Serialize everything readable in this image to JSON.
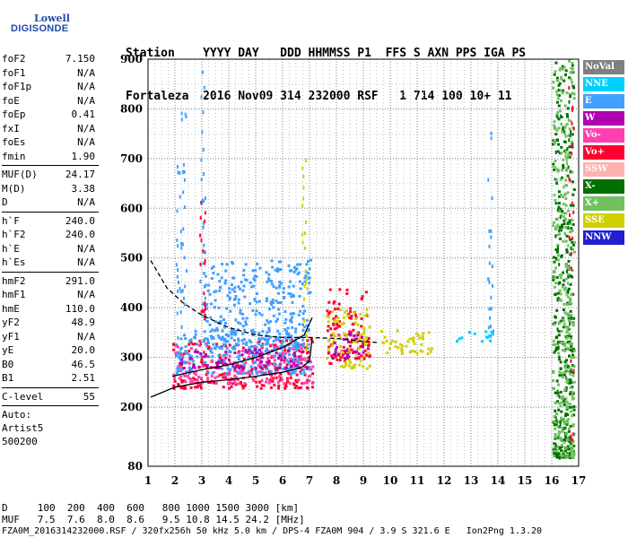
{
  "logo": {
    "line1": "Lowell",
    "line2": "DIGISONDE"
  },
  "header": {
    "line1": "Station    YYYY DAY   DDD HHMMSS P1  FFS S AXN PPS IGA PS",
    "line2": "Fortaleza  2016 Nov09 314 232000 RSF   1 714 100 10+ 11"
  },
  "params": [
    {
      "group": [
        {
          "k": "foF2",
          "v": "7.150"
        },
        {
          "k": "foF1",
          "v": "N/A"
        },
        {
          "k": "foF1p",
          "v": "N/A"
        },
        {
          "k": "foE",
          "v": "N/A"
        },
        {
          "k": "foEp",
          "v": "0.41"
        },
        {
          "k": "fxI",
          "v": "N/A"
        },
        {
          "k": "foEs",
          "v": "N/A"
        },
        {
          "k": "fmin",
          "v": "1.90"
        }
      ]
    },
    {
      "group": [
        {
          "k": "MUF(D)",
          "v": "24.17"
        },
        {
          "k": "M(D)",
          "v": "3.38"
        },
        {
          "k": "D",
          "v": "N/A"
        }
      ]
    },
    {
      "group": [
        {
          "k": "h`F",
          "v": "240.0"
        },
        {
          "k": "h`F2",
          "v": "240.0"
        },
        {
          "k": "h`E",
          "v": "N/A"
        },
        {
          "k": "h`Es",
          "v": "N/A"
        }
      ]
    },
    {
      "group": [
        {
          "k": "hmF2",
          "v": "291.0"
        },
        {
          "k": "hmF1",
          "v": "N/A"
        },
        {
          "k": "hmE",
          "v": "110.0"
        },
        {
          "k": "yF2",
          "v": "48.9"
        },
        {
          "k": "yF1",
          "v": "N/A"
        },
        {
          "k": "yE",
          "v": "20.0"
        },
        {
          "k": "B0",
          "v": "46.5"
        },
        {
          "k": "B1",
          "v": "2.51"
        }
      ]
    },
    {
      "group": [
        {
          "k": "C-level",
          "v": "55"
        }
      ]
    }
  ],
  "auto": {
    "line1": "Auto:",
    "line2": "Artist5",
    "line3": "500200"
  },
  "bottom": {
    "d_row": "D     100  200  400  600   800 1000 1500 3000 [km]",
    "muf_row": "MUF   7.5  7.6  8.0  8.6   9.5 10.8 14.5 24.2 [MHz]",
    "footer": "FZA0M_2016314232000.RSF / 320fx256h 50 kHz 5.0 km / DPS-4 FZA0M 904 / 3.9 S 321.6 E   Ion2Png 1.3.20"
  },
  "legend": [
    {
      "label": "NoVal",
      "color": "#808080"
    },
    {
      "label": "NNE",
      "color": "#00d0ff"
    },
    {
      "label": "E",
      "color": "#40a0ff"
    },
    {
      "label": "W",
      "color": "#b000b0"
    },
    {
      "label": "Vo-",
      "color": "#ff40b0"
    },
    {
      "label": "Vo+",
      "color": "#ff0030"
    },
    {
      "label": "SSW",
      "color": "#ffb0b0"
    },
    {
      "label": "X-",
      "color": "#007000"
    },
    {
      "label": "X+",
      "color": "#70c060"
    },
    {
      "label": "SSE",
      "color": "#d0d000"
    },
    {
      "label": "NNW",
      "color": "#2020d0"
    }
  ],
  "chart_data": {
    "type": "scatter",
    "xlim": [
      1,
      17
    ],
    "ylim": [
      80,
      900
    ],
    "x_ticks": [
      1,
      2,
      3,
      4,
      5,
      6,
      7,
      8,
      9,
      10,
      11,
      12,
      13,
      14,
      15,
      16,
      17
    ],
    "y_ticks": [
      80,
      200,
      300,
      400,
      500,
      600,
      700,
      800,
      900
    ],
    "grid": true,
    "clusters": [
      {
        "x": [
          1.9,
          7.1
        ],
        "y": [
          240,
          340
        ],
        "color": "Vo+"
      },
      {
        "x": [
          1.9,
          7.1
        ],
        "y": [
          250,
          330
        ],
        "color": "Vo-"
      },
      {
        "x": [
          2.0,
          7.0
        ],
        "y": [
          270,
          360
        ],
        "color": "E"
      },
      {
        "x": [
          3.0,
          7.0
        ],
        "y": [
          320,
          500
        ],
        "color": "E"
      },
      {
        "x": [
          2.1,
          7.0
        ],
        "y": [
          280,
          320
        ],
        "color": "W"
      },
      {
        "x": [
          7.6,
          9.2
        ],
        "y": [
          290,
          440
        ],
        "color": "Vo+"
      },
      {
        "x": [
          7.6,
          9.2
        ],
        "y": [
          280,
          400
        ],
        "color": "SSE"
      },
      {
        "x": [
          7.8,
          9.3
        ],
        "y": [
          300,
          350
        ],
        "color": "W"
      },
      {
        "x": [
          9.6,
          11.5
        ],
        "y": [
          310,
          360
        ],
        "color": "SSE"
      },
      {
        "x": [
          12.4,
          13.8
        ],
        "y": [
          335,
          355
        ],
        "color": "NNE"
      },
      {
        "x": [
          16.0,
          16.8
        ],
        "y": [
          100,
          900
        ],
        "color": "X-"
      },
      {
        "x": [
          16.0,
          16.8
        ],
        "y": [
          100,
          900
        ],
        "color": "X+"
      }
    ],
    "scatter_seed": 7,
    "curves": [
      {
        "name": "ordinary",
        "style": "solid",
        "points": [
          [
            1.1,
            220
          ],
          [
            2,
            240
          ],
          [
            3,
            250
          ],
          [
            4,
            255
          ],
          [
            5,
            262
          ],
          [
            6,
            270
          ],
          [
            6.7,
            280
          ],
          [
            7.0,
            292
          ],
          [
            7.1,
            340
          ]
        ]
      },
      {
        "name": "ordinary_upper",
        "style": "solid",
        "points": [
          [
            1.9,
            262
          ],
          [
            3,
            275
          ],
          [
            4,
            285
          ],
          [
            5,
            300
          ],
          [
            6,
            320
          ],
          [
            6.8,
            345
          ],
          [
            7.1,
            380
          ]
        ]
      },
      {
        "name": "extraordinary",
        "style": "dashed",
        "points": [
          [
            1.1,
            495
          ],
          [
            1.7,
            440
          ],
          [
            2.3,
            410
          ],
          [
            3,
            385
          ],
          [
            4,
            360
          ],
          [
            5,
            345
          ],
          [
            6,
            340
          ],
          [
            7,
            340
          ],
          [
            8,
            338
          ],
          [
            9,
            332
          ],
          [
            9.5,
            330
          ]
        ]
      }
    ]
  }
}
